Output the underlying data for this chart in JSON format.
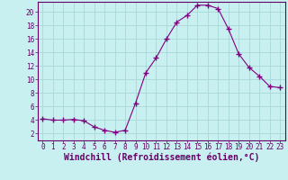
{
  "x": [
    0,
    1,
    2,
    3,
    4,
    5,
    6,
    7,
    8,
    9,
    10,
    11,
    12,
    13,
    14,
    15,
    16,
    17,
    18,
    19,
    20,
    21,
    22,
    23
  ],
  "y": [
    4.2,
    4.0,
    4.0,
    4.1,
    3.9,
    3.0,
    2.5,
    2.2,
    2.5,
    6.5,
    11.0,
    13.2,
    16.0,
    18.5,
    19.5,
    21.0,
    21.0,
    20.5,
    17.5,
    13.8,
    11.8,
    10.5,
    9.0,
    8.8
  ],
  "line_color": "#800080",
  "marker": "+",
  "marker_size": 4,
  "bg_color": "#c8f0f0",
  "grid_color": "#a8d8d8",
  "xlabel": "Windchill (Refroidissement éolien,°C)",
  "xlim": [
    -0.5,
    23.5
  ],
  "ylim": [
    1,
    21.5
  ],
  "xticks": [
    0,
    1,
    2,
    3,
    4,
    5,
    6,
    7,
    8,
    9,
    10,
    11,
    12,
    13,
    14,
    15,
    16,
    17,
    18,
    19,
    20,
    21,
    22,
    23
  ],
  "yticks": [
    2,
    4,
    6,
    8,
    10,
    12,
    14,
    16,
    18,
    20
  ],
  "tick_fontsize": 5.5,
  "xlabel_fontsize": 7.0
}
